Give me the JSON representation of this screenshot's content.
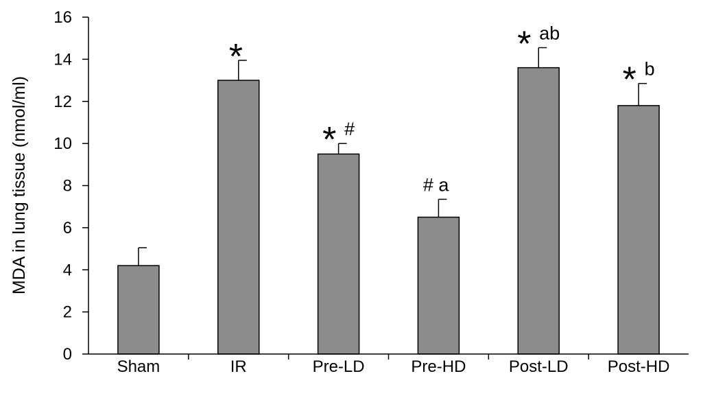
{
  "chart_data": {
    "type": "bar",
    "categories": [
      "Sham",
      "IR",
      "Pre-LD",
      "Pre-HD",
      "Post-LD",
      "Post-HD"
    ],
    "values": [
      4.2,
      13.0,
      9.5,
      6.5,
      13.6,
      11.8
    ],
    "error": [
      0.85,
      0.95,
      0.5,
      0.85,
      0.95,
      1.05
    ],
    "annotations": [
      {
        "star": "",
        "text": ""
      },
      {
        "star": "*",
        "text": ""
      },
      {
        "star": "*",
        "text": "#"
      },
      {
        "star": "",
        "text": "# a"
      },
      {
        "star": "*",
        "text": "ab"
      },
      {
        "star": "*",
        "text": "b"
      }
    ],
    "title": "",
    "xlabel": "",
    "ylabel": "MDA in lung tissue (nmol/ml)",
    "ylim": [
      0,
      16
    ],
    "yticks": [
      0,
      2,
      4,
      6,
      8,
      10,
      12,
      14,
      16
    ],
    "grid": false,
    "bar_color": "#8c8c8c",
    "edge_color": "#000000"
  }
}
